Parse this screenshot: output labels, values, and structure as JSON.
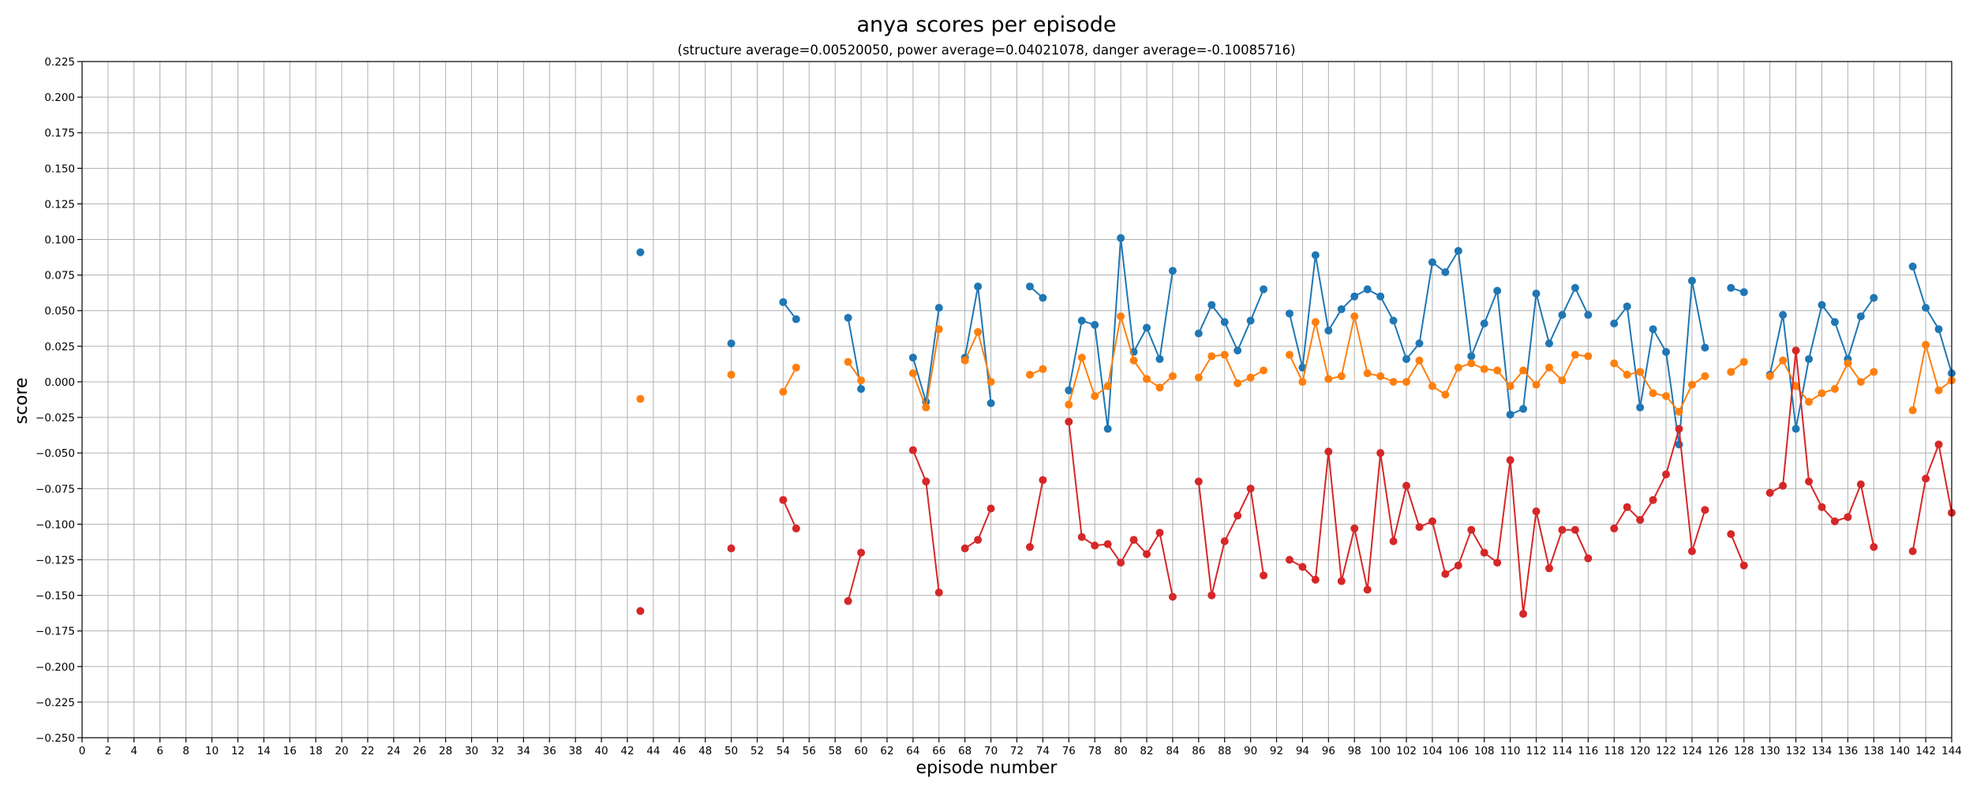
{
  "chart_data": {
    "type": "line",
    "title": "anya scores per episode",
    "subtitle": "(structure average=0.00520050, power average=0.04021078, danger average=-0.10085716)",
    "xlabel": "episode number",
    "ylabel": "score",
    "xlim": [
      0,
      144
    ],
    "ylim": [
      -0.25,
      0.225
    ],
    "xticks": [
      0,
      2,
      4,
      6,
      8,
      10,
      12,
      14,
      16,
      18,
      20,
      22,
      24,
      26,
      28,
      30,
      32,
      34,
      36,
      38,
      40,
      42,
      44,
      46,
      48,
      50,
      52,
      54,
      56,
      58,
      60,
      62,
      64,
      66,
      68,
      70,
      72,
      74,
      76,
      78,
      80,
      82,
      84,
      86,
      88,
      90,
      92,
      94,
      96,
      98,
      100,
      102,
      104,
      106,
      108,
      110,
      112,
      114,
      116,
      118,
      120,
      122,
      124,
      126,
      128,
      130,
      132,
      134,
      136,
      138,
      140,
      142,
      144
    ],
    "yticks": [
      -0.25,
      -0.225,
      -0.2,
      -0.175,
      -0.15,
      -0.125,
      -0.1,
      -0.075,
      -0.05,
      -0.025,
      0,
      0.025,
      0.05,
      0.075,
      0.1,
      0.125,
      0.15,
      0.175,
      0.2,
      0.225
    ],
    "ytick_labels": [
      "−0.250",
      "−0.225",
      "−0.200",
      "−0.175",
      "−0.150",
      "−0.125",
      "−0.100",
      "−0.075",
      "−0.050",
      "−0.025",
      "0.000",
      "0.025",
      "0.050",
      "0.075",
      "0.100",
      "0.125",
      "0.150",
      "0.175",
      "0.200",
      "0.225"
    ],
    "grid": true,
    "legend": false,
    "x": [
      43,
      50,
      54,
      55,
      59,
      60,
      64,
      65,
      66,
      68,
      69,
      70,
      73,
      74,
      76,
      77,
      78,
      79,
      80,
      81,
      82,
      83,
      84,
      86,
      87,
      88,
      89,
      90,
      91,
      93,
      94,
      95,
      96,
      97,
      98,
      99,
      100,
      101,
      102,
      103,
      104,
      105,
      106,
      107,
      108,
      109,
      110,
      111,
      112,
      113,
      114,
      115,
      116,
      118,
      119,
      120,
      121,
      122,
      123,
      124,
      125,
      127,
      128,
      130,
      131,
      132,
      133,
      134,
      135,
      136,
      137,
      138,
      141,
      142,
      143,
      144
    ],
    "series": [
      {
        "color": "#1f77b4",
        "values": [
          0.091,
          0.027,
          0.056,
          0.044,
          0.045,
          -0.005,
          0.017,
          -0.014,
          0.052,
          0.017,
          0.067,
          -0.015,
          0.067,
          0.059,
          -0.006,
          0.043,
          0.04,
          -0.033,
          0.101,
          0.021,
          0.038,
          0.016,
          0.078,
          0.034,
          0.054,
          0.042,
          0.022,
          0.043,
          0.065,
          0.048,
          0.01,
          0.089,
          0.036,
          0.051,
          0.06,
          0.065,
          0.06,
          0.043,
          0.016,
          0.027,
          0.084,
          0.077,
          0.092,
          0.018,
          0.041,
          0.064,
          -0.023,
          -0.019,
          0.062,
          0.027,
          0.047,
          0.066,
          0.047,
          0.041,
          0.053,
          -0.018,
          0.037,
          0.021,
          -0.044,
          0.071,
          0.024,
          0.066,
          0.063,
          0.005,
          0.047,
          -0.033,
          0.016,
          0.054,
          0.042,
          0.016,
          0.046,
          0.059,
          0.081,
          0.052,
          0.037,
          0.006
        ]
      },
      {
        "color": "#ff7f0e",
        "values": [
          -0.012,
          0.005,
          -0.007,
          0.01,
          0.014,
          0.001,
          0.006,
          -0.018,
          0.037,
          0.015,
          0.035,
          0.0,
          0.005,
          0.009,
          -0.016,
          0.017,
          -0.01,
          -0.003,
          0.046,
          0.015,
          0.002,
          -0.004,
          0.004,
          0.003,
          0.018,
          0.019,
          -0.001,
          0.003,
          0.008,
          0.019,
          0.0,
          0.042,
          0.002,
          0.004,
          0.046,
          0.006,
          0.004,
          0.0,
          0.0,
          0.015,
          -0.003,
          -0.009,
          0.01,
          0.013,
          0.009,
          0.008,
          -0.003,
          0.008,
          -0.002,
          0.01,
          0.001,
          0.019,
          0.018,
          0.013,
          0.005,
          0.007,
          -0.008,
          -0.01,
          -0.021,
          -0.002,
          0.004,
          0.007,
          0.014,
          0.004,
          0.015,
          -0.003,
          -0.014,
          -0.008,
          -0.005,
          0.013,
          0.0,
          0.007,
          -0.02,
          0.026,
          -0.006,
          0.001
        ]
      },
      {
        "color": "#d62728",
        "values": [
          -0.161,
          -0.117,
          -0.083,
          -0.103,
          -0.154,
          -0.12,
          -0.048,
          -0.07,
          -0.148,
          -0.117,
          -0.111,
          -0.089,
          -0.116,
          -0.069,
          -0.028,
          -0.109,
          -0.115,
          -0.114,
          -0.127,
          -0.111,
          -0.121,
          -0.106,
          -0.151,
          -0.07,
          -0.15,
          -0.112,
          -0.094,
          -0.075,
          -0.136,
          -0.125,
          -0.13,
          -0.139,
          -0.049,
          -0.14,
          -0.103,
          -0.146,
          -0.05,
          -0.112,
          -0.073,
          -0.102,
          -0.098,
          -0.135,
          -0.129,
          -0.104,
          -0.12,
          -0.127,
          -0.055,
          -0.163,
          -0.091,
          -0.131,
          -0.104,
          -0.104,
          -0.124,
          -0.103,
          -0.088,
          -0.097,
          -0.083,
          -0.065,
          -0.033,
          -0.119,
          -0.09,
          -0.107,
          -0.129,
          -0.078,
          -0.073,
          0.022,
          -0.07,
          -0.088,
          -0.098,
          -0.095,
          -0.072,
          -0.116,
          -0.119,
          -0.068,
          -0.044,
          -0.092
        ]
      }
    ]
  }
}
